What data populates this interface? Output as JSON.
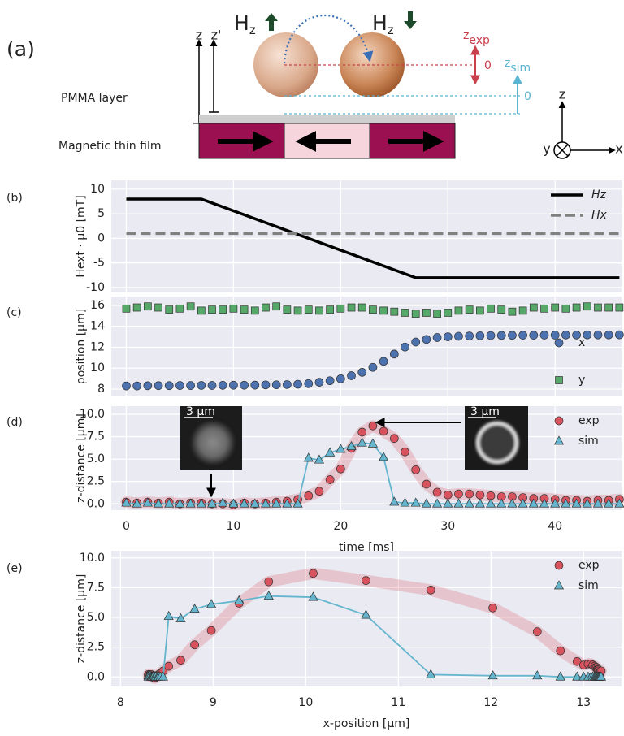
{
  "diagram": {
    "label": "(a)",
    "h_up": {
      "main": "H",
      "sub": "z"
    },
    "h_down": {
      "main": "H",
      "sub": "z"
    },
    "z_exp": {
      "main": "z",
      "sub": "exp"
    },
    "z_exp_zero": "0",
    "z_sim": {
      "main": "z",
      "sub": "sim"
    },
    "z_sim_zero": "0",
    "axis_z": "z",
    "axis_z_prime": "z'",
    "pmma": "PMMA layer",
    "film": "Magnetic thin film",
    "coord_z": "z",
    "coord_y": "y",
    "coord_x": "x"
  },
  "chart_data": [
    {
      "type": "line",
      "label": "(b)",
      "ylabel": "Hext · μ0 [mT]",
      "xlim": [
        -1.4,
        46.2
      ],
      "ylim": [
        -11,
        11.8
      ],
      "xticks": [
        0,
        10,
        20,
        30,
        40
      ],
      "xtick_labels": false,
      "yticks": [
        -10,
        -5,
        0,
        5,
        10
      ],
      "grid": true,
      "legend": "upper right",
      "series": [
        {
          "name": "Hz",
          "color": "#000000",
          "x": [
            0,
            7,
            27,
            46
          ],
          "values": [
            8,
            8,
            -8,
            -8
          ]
        },
        {
          "name": "Hx",
          "color": "#808080",
          "dash": true,
          "x": [
            0,
            46
          ],
          "values": [
            1,
            1
          ]
        }
      ]
    },
    {
      "type": "scatter",
      "label": "(c)",
      "ylabel": "position [μm]",
      "xlim": [
        -1.4,
        46.2
      ],
      "ylim": [
        7.3,
        16.85
      ],
      "xticks": [
        0,
        10,
        20,
        30,
        40
      ],
      "xtick_labels": false,
      "yticks": [
        8,
        10,
        12,
        14,
        16
      ],
      "grid": true,
      "legend": "lower right",
      "x": [
        0,
        1,
        2,
        3,
        4,
        5,
        6,
        7,
        8,
        9,
        10,
        11,
        12,
        13,
        14,
        15,
        16,
        17,
        18,
        19,
        20,
        21,
        22,
        23,
        24,
        25,
        26,
        27,
        28,
        29,
        30,
        31,
        32,
        33,
        34,
        35,
        36,
        37,
        38,
        39,
        40,
        41,
        42,
        43,
        44,
        45,
        46
      ],
      "series": [
        {
          "name": "x",
          "color": "#4c72b0",
          "marker": "circle",
          "values": [
            8.3,
            8.3,
            8.32,
            8.33,
            8.33,
            8.34,
            8.34,
            8.35,
            8.35,
            8.36,
            8.37,
            8.37,
            8.38,
            8.4,
            8.41,
            8.43,
            8.46,
            8.52,
            8.65,
            8.8,
            8.98,
            9.28,
            9.6,
            10.08,
            10.65,
            11.35,
            12.02,
            12.5,
            12.75,
            12.93,
            13.0,
            13.05,
            13.08,
            13.1,
            13.12,
            13.13,
            13.14,
            13.15,
            13.15,
            13.16,
            13.16,
            13.17,
            13.17,
            13.18,
            13.18,
            13.18,
            13.19
          ]
        },
        {
          "name": "y",
          "color": "#55a868",
          "marker": "square",
          "values": [
            15.7,
            15.8,
            15.9,
            15.8,
            15.6,
            15.7,
            15.9,
            15.5,
            15.6,
            15.6,
            15.7,
            15.6,
            15.5,
            15.8,
            15.9,
            15.6,
            15.5,
            15.6,
            15.5,
            15.6,
            15.7,
            15.8,
            15.8,
            15.6,
            15.5,
            15.4,
            15.3,
            15.2,
            15.3,
            15.2,
            15.3,
            15.5,
            15.6,
            15.5,
            15.7,
            15.6,
            15.4,
            15.5,
            15.8,
            15.7,
            15.8,
            15.7,
            15.8,
            15.9,
            15.8,
            15.8,
            15.8
          ]
        }
      ]
    },
    {
      "type": "scatter",
      "label": "(d)",
      "xlabel": "time [ms]",
      "ylabel": "z-distance [μm]",
      "xlim": [
        -1.4,
        46.2
      ],
      "ylim": [
        -0.7,
        10.9
      ],
      "xticks": [
        0,
        10,
        20,
        30,
        40
      ],
      "yticks": [
        {
          "value": 0,
          "label": "0.0"
        },
        {
          "value": 2.5,
          "label": "2.5"
        },
        {
          "value": 5,
          "label": "5.0"
        },
        {
          "value": 7.5,
          "label": "7.5"
        },
        {
          "value": 10,
          "label": "10.0"
        }
      ],
      "grid": true,
      "legend": "upper right",
      "annotations": [
        "3 μm",
        "3 μm"
      ],
      "x": [
        0,
        1,
        2,
        3,
        4,
        5,
        6,
        7,
        8,
        9,
        10,
        11,
        12,
        13,
        14,
        15,
        16,
        17,
        18,
        19,
        20,
        21,
        22,
        23,
        24,
        25,
        26,
        27,
        28,
        29,
        30,
        31,
        32,
        33,
        34,
        35,
        36,
        37,
        38,
        39,
        40,
        41,
        42,
        43,
        44,
        45,
        46
      ],
      "series": [
        {
          "name": "exp",
          "color": "#d9535f",
          "marker": "circle",
          "trend_band": true,
          "values": [
            0.2,
            0.1,
            0.2,
            0.1,
            0.2,
            0.0,
            0.1,
            0.1,
            0.0,
            0.0,
            -0.1,
            0.1,
            0.0,
            0.1,
            0.2,
            0.3,
            0.5,
            0.9,
            1.4,
            2.7,
            3.9,
            6.2,
            8.0,
            8.7,
            8.1,
            7.3,
            5.8,
            3.8,
            2.2,
            1.3,
            1.0,
            1.1,
            1.1,
            1.0,
            0.9,
            0.8,
            0.8,
            0.7,
            0.6,
            0.6,
            0.5,
            0.4,
            0.4,
            0.3,
            0.4,
            0.4,
            0.5
          ]
        },
        {
          "name": "sim",
          "color": "#64b5cd",
          "marker": "triangle",
          "line": true,
          "values": [
            0.1,
            0.0,
            0.1,
            0.0,
            0.0,
            0.0,
            0.0,
            0.0,
            0.0,
            0.1,
            0.0,
            0.0,
            0.0,
            0.0,
            0.0,
            0.0,
            0.0,
            5.1,
            4.9,
            5.7,
            6.1,
            6.4,
            6.8,
            6.7,
            5.2,
            0.2,
            0.1,
            0.1,
            0.0,
            0.0,
            0.0,
            0.0,
            0.0,
            0.0,
            0.0,
            0.0,
            0.0,
            0.0,
            0.0,
            0.0,
            0.0,
            0.0,
            0.0,
            0.0,
            0.0,
            0.0,
            0.0
          ]
        }
      ]
    },
    {
      "type": "scatter",
      "label": "(e)",
      "xlabel": "x-position [μm]",
      "ylabel": "z-distance [μm]",
      "xlim": [
        7.9,
        13.41
      ],
      "ylim": [
        -0.8,
        10.6
      ],
      "xticks": [
        8,
        9,
        10,
        11,
        12,
        13
      ],
      "yticks": [
        {
          "value": 0,
          "label": "0.0"
        },
        {
          "value": 2.5,
          "label": "2.5"
        },
        {
          "value": 5,
          "label": "5.0"
        },
        {
          "value": 7.5,
          "label": "7.5"
        },
        {
          "value": 10,
          "label": "10.0"
        }
      ],
      "grid": true,
      "legend": "upper right",
      "series": [
        {
          "name": "exp",
          "color": "#d9535f",
          "marker": "circle",
          "trend_band": true,
          "x": [
            8.3,
            8.3,
            8.32,
            8.33,
            8.33,
            8.34,
            8.34,
            8.35,
            8.35,
            8.36,
            8.37,
            8.37,
            8.38,
            8.4,
            8.41,
            8.43,
            8.46,
            8.52,
            8.65,
            8.8,
            8.98,
            9.28,
            9.6,
            10.08,
            10.65,
            11.35,
            12.02,
            12.5,
            12.75,
            12.93,
            13.0,
            13.05,
            13.08,
            13.1,
            13.12,
            13.13,
            13.14,
            13.15,
            13.15,
            13.16,
            13.16,
            13.17,
            13.17,
            13.18,
            13.18,
            13.18,
            13.19
          ],
          "values": [
            0.2,
            0.1,
            0.2,
            0.1,
            0.2,
            0.0,
            0.1,
            0.1,
            0.0,
            0.0,
            -0.1,
            0.1,
            0.0,
            0.1,
            0.2,
            0.3,
            0.5,
            0.9,
            1.4,
            2.7,
            3.9,
            6.2,
            8.0,
            8.7,
            8.1,
            7.3,
            5.8,
            3.8,
            2.2,
            1.3,
            1.0,
            1.1,
            1.1,
            1.0,
            0.9,
            0.8,
            0.8,
            0.7,
            0.6,
            0.6,
            0.5,
            0.4,
            0.4,
            0.3,
            0.4,
            0.4,
            0.5
          ]
        },
        {
          "name": "sim",
          "color": "#64b5cd",
          "marker": "triangle",
          "line": true,
          "x": [
            8.3,
            8.3,
            8.32,
            8.33,
            8.33,
            8.34,
            8.34,
            8.35,
            8.35,
            8.36,
            8.37,
            8.37,
            8.38,
            8.4,
            8.41,
            8.43,
            8.46,
            8.52,
            8.65,
            8.8,
            8.98,
            9.28,
            9.6,
            10.08,
            10.65,
            11.35,
            12.02,
            12.5,
            12.75,
            12.93,
            13.0,
            13.05,
            13.08,
            13.1,
            13.12,
            13.13,
            13.14,
            13.15,
            13.15,
            13.16,
            13.16,
            13.17,
            13.17,
            13.18,
            13.18,
            13.18,
            13.19
          ],
          "values": [
            0.1,
            0.0,
            0.1,
            0.0,
            0.0,
            0.0,
            0.0,
            0.0,
            0.0,
            0.1,
            0.0,
            0.0,
            0.0,
            0.0,
            0.0,
            0.0,
            0.0,
            5.1,
            4.9,
            5.7,
            6.1,
            6.4,
            6.8,
            6.7,
            5.2,
            0.2,
            0.1,
            0.1,
            0.0,
            0.0,
            0.0,
            0.0,
            0.0,
            0.0,
            0.0,
            0.0,
            0.0,
            0.0,
            0.0,
            0.0,
            0.0,
            0.0,
            0.0,
            0.0,
            0.0,
            0.0,
            0.0
          ]
        }
      ]
    }
  ]
}
